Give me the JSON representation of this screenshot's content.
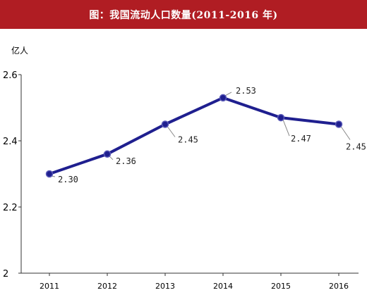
{
  "title": "图：我国流动人口数量(2011-2016 年)",
  "chart_data": {
    "type": "line",
    "title": "图：我国流动人口数量(2011-2016 年)",
    "ylabel": "亿人",
    "xlabel": "",
    "categories": [
      "2011",
      "2012",
      "2013",
      "2014",
      "2015",
      "2016"
    ],
    "series": [
      {
        "values": [
          2.3,
          2.36,
          2.45,
          2.53,
          2.47,
          2.45
        ]
      }
    ],
    "data_labels": [
      "2.30",
      "2.36",
      "2.45",
      "2.53",
      "2.47",
      "2.45"
    ],
    "y_ticks": [
      "2",
      "2.2",
      "2.4",
      "2.6"
    ],
    "ylim": [
      2,
      2.6
    ],
    "grid": false,
    "legend": "none",
    "colors": {
      "line": "#1f1f8f",
      "title_bg": "#b01d23"
    }
  }
}
